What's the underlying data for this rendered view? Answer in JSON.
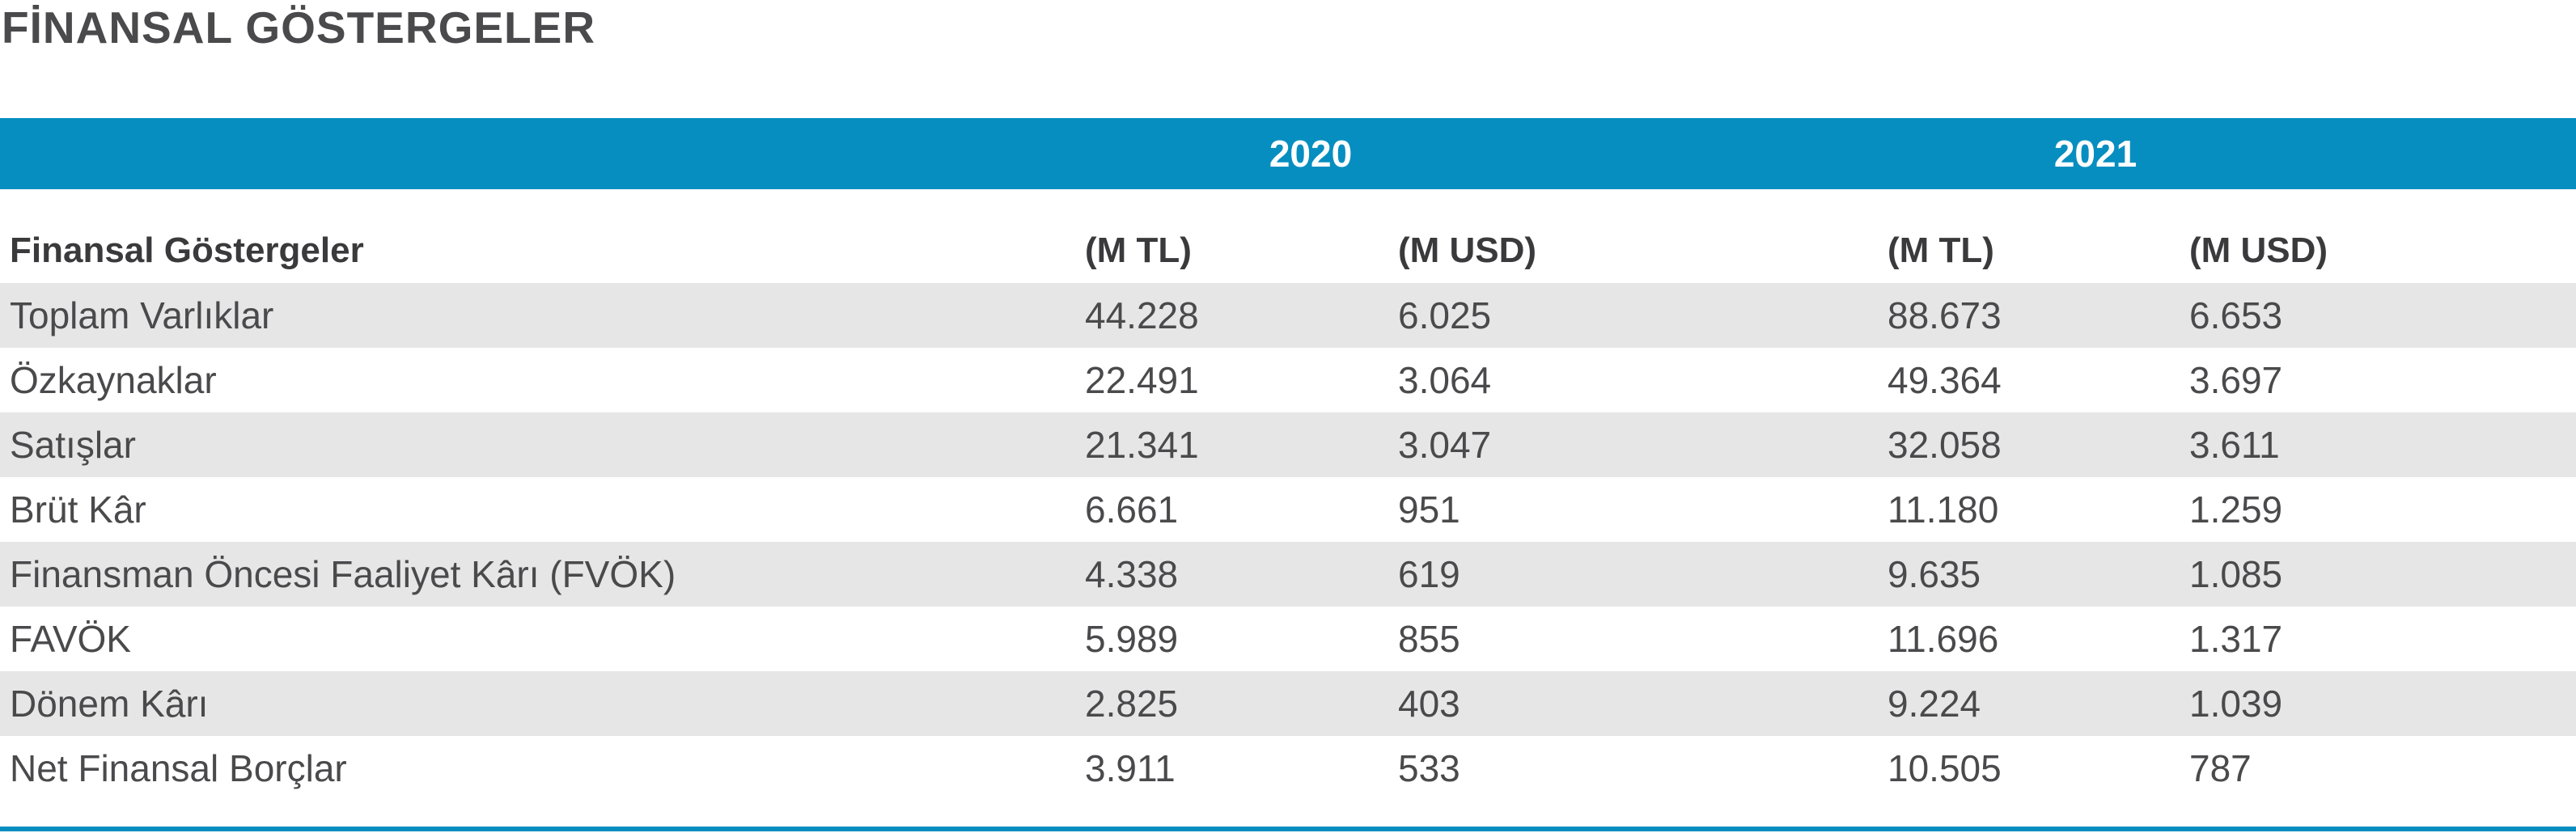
{
  "title": "FİNANSAL GÖSTERGELER",
  "years": [
    "2020",
    "2021"
  ],
  "columns": [
    "Finansal Göstergeler",
    "(M TL)",
    "(M USD)",
    "(M TL)",
    "(M USD)"
  ],
  "rows": [
    {
      "label": "Toplam Varlıklar",
      "tl2020": "44.228",
      "usd2020": "6.025",
      "tl2021": "88.673",
      "usd2021": "6.653"
    },
    {
      "label": "Özkaynaklar",
      "tl2020": "22.491",
      "usd2020": "3.064",
      "tl2021": "49.364",
      "usd2021": "3.697"
    },
    {
      "label": "Satışlar",
      "tl2020": "21.341",
      "usd2020": "3.047",
      "tl2021": "32.058",
      "usd2021": "3.611"
    },
    {
      "label": "Brüt Kâr",
      "tl2020": "6.661",
      "usd2020": "951",
      "tl2021": "11.180",
      "usd2021": "1.259"
    },
    {
      "label": "Finansman Öncesi Faaliyet Kârı (FVÖK)",
      "tl2020": "4.338",
      "usd2020": "619",
      "tl2021": "9.635",
      "usd2021": "1.085"
    },
    {
      "label": "FAVÖK",
      "tl2020": "5.989",
      "usd2020": "855",
      "tl2021": "11.696",
      "usd2021": "1.317"
    },
    {
      "label": "Dönem Kârı",
      "tl2020": "2.825",
      "usd2020": "403",
      "tl2021": "9.224",
      "usd2021": "1.039"
    },
    {
      "label": "Net Finansal Borçlar",
      "tl2020": "3.911",
      "usd2020": "533",
      "tl2021": "10.505",
      "usd2021": "787"
    }
  ],
  "colors": {
    "accent": "#078ec0",
    "stripe": "#e6e6e6",
    "text": "#4a4a4c"
  }
}
